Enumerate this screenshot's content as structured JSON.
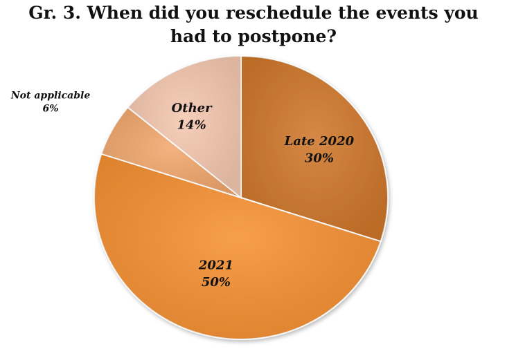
{
  "title_lines": [
    "Gr. 3. When did you reschedule the events you",
    "had to postpone?"
  ],
  "chart_data": {
    "type": "pie",
    "title": "Gr. 3. When did you reschedule the events you had to postpone?",
    "unit": "%",
    "slices": [
      {
        "name": "Late 2020",
        "value": 30,
        "label": "30%",
        "color": "#D0782C"
      },
      {
        "name": "2021",
        "value": 50,
        "label": "50%",
        "color": "#F79234"
      },
      {
        "name": "Not applicable",
        "value": 6,
        "label": "6%",
        "color": "#F2A86E"
      },
      {
        "name": "Other",
        "value": 14,
        "label": "14%",
        "color": "#F5C8B0"
      }
    ]
  }
}
